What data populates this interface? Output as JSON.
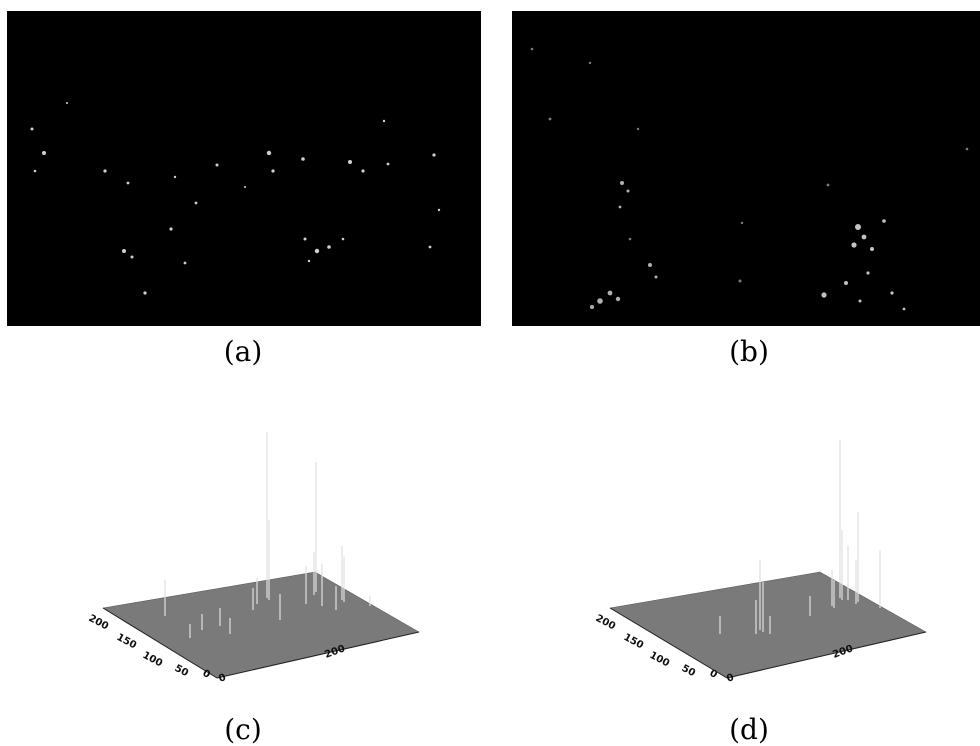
{
  "figure": {
    "panel_a": {
      "caption": "(a)"
    },
    "panel_b": {
      "caption": "(b)"
    },
    "panel_c": {
      "caption": "(c)",
      "y_ticks": [
        "200",
        "150",
        "100",
        "50",
        "0"
      ],
      "x_ticks": [
        "0",
        "200"
      ]
    },
    "panel_d": {
      "caption": "(d)",
      "y_ticks": [
        "200",
        "150",
        "100",
        "50",
        "0"
      ],
      "x_ticks": [
        "0",
        "200"
      ]
    }
  },
  "colors": {
    "image_background": "#000000",
    "surface_fill": "#7a7a7a",
    "spike": "#dcdcdc"
  }
}
